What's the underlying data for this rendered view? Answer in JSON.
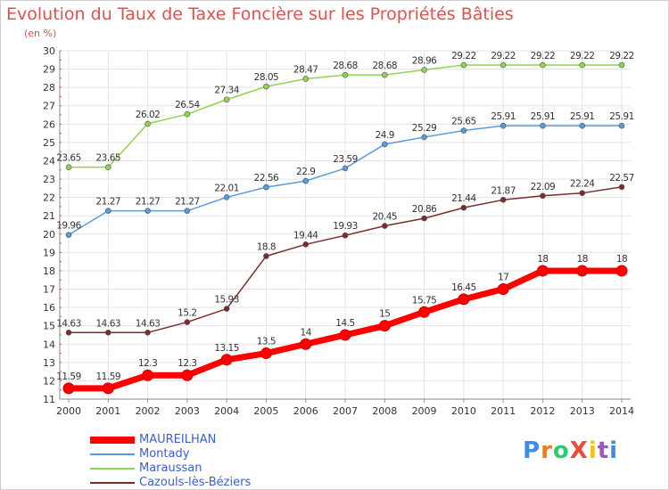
{
  "title": "Evolution du Taux de Taxe Foncière sur les Propriétés Bâties",
  "unit": "(en %)",
  "brand": "ProXiti",
  "chart_data": {
    "type": "line",
    "title": "Evolution du Taux de Taxe Foncière sur les Propriétés Bâties",
    "ylabel": "(en %)",
    "xlabel": "",
    "ylim": [
      11,
      30
    ],
    "grid": true,
    "legend_position": "bottom-left",
    "x": [
      "2000",
      "2001",
      "2002",
      "2003",
      "2004",
      "2005",
      "2006",
      "2007",
      "2008",
      "2009",
      "2010",
      "2011",
      "2012",
      "2013",
      "2014"
    ],
    "y_ticks": [
      "11",
      "12",
      "13",
      "14",
      "15",
      "16",
      "17",
      "18",
      "19",
      "20",
      "21",
      "22",
      "23",
      "24",
      "25",
      "26",
      "27",
      "28",
      "29",
      "30"
    ],
    "series": [
      {
        "name": "MAUREILHAN",
        "color": "#ff0000",
        "values": [
          11.59,
          11.59,
          12.3,
          12.3,
          13.15,
          13.5,
          14,
          14.5,
          15,
          15.75,
          16.45,
          17,
          18,
          18,
          18
        ],
        "labels": [
          "11.59",
          "11.59",
          "12.3",
          "12.3",
          "13.15",
          "13.5",
          "14",
          "14.5",
          "15",
          "15.75",
          "16.45",
          "17",
          "18",
          "18",
          "18"
        ]
      },
      {
        "name": "Montady",
        "color": "#5b9bd5",
        "values": [
          19.96,
          21.27,
          21.27,
          21.27,
          22.01,
          22.56,
          22.9,
          23.59,
          24.9,
          25.29,
          25.65,
          25.91,
          25.91,
          25.91,
          25.91
        ],
        "labels": [
          "19.96",
          "21.27",
          "21.27",
          "21.27",
          "22.01",
          "22.56",
          "22.9",
          "23.59",
          "24.9",
          "25.29",
          "25.65",
          "25.91",
          "25.91",
          "25.91",
          "25.91"
        ]
      },
      {
        "name": "Maraussan",
        "color": "#8fd44f",
        "values": [
          23.65,
          23.65,
          26.02,
          26.54,
          27.34,
          28.05,
          28.47,
          28.68,
          28.68,
          28.96,
          29.22,
          29.22,
          29.22,
          29.22,
          29.22
        ],
        "labels": [
          "23.65",
          "23.65",
          "26.02",
          "26.54",
          "27.34",
          "28.05",
          "28.47",
          "28.68",
          "28.68",
          "28.96",
          "29.22",
          "29.22",
          "29.22",
          "29.22",
          "29.22"
        ]
      },
      {
        "name": "Cazouls-lès-Béziers",
        "color": "#7b2d2d",
        "values": [
          14.63,
          14.63,
          14.63,
          15.2,
          15.93,
          18.8,
          19.44,
          19.93,
          20.45,
          20.86,
          21.44,
          21.87,
          22.09,
          22.24,
          22.57
        ],
        "labels": [
          "14.63",
          "14.63",
          "14.63",
          "15.2",
          "15.93",
          "18.8",
          "19.44",
          "19.93",
          "20.45",
          "20.86",
          "21.44",
          "21.87",
          "22.09",
          "22.24",
          "22.57"
        ]
      }
    ]
  }
}
